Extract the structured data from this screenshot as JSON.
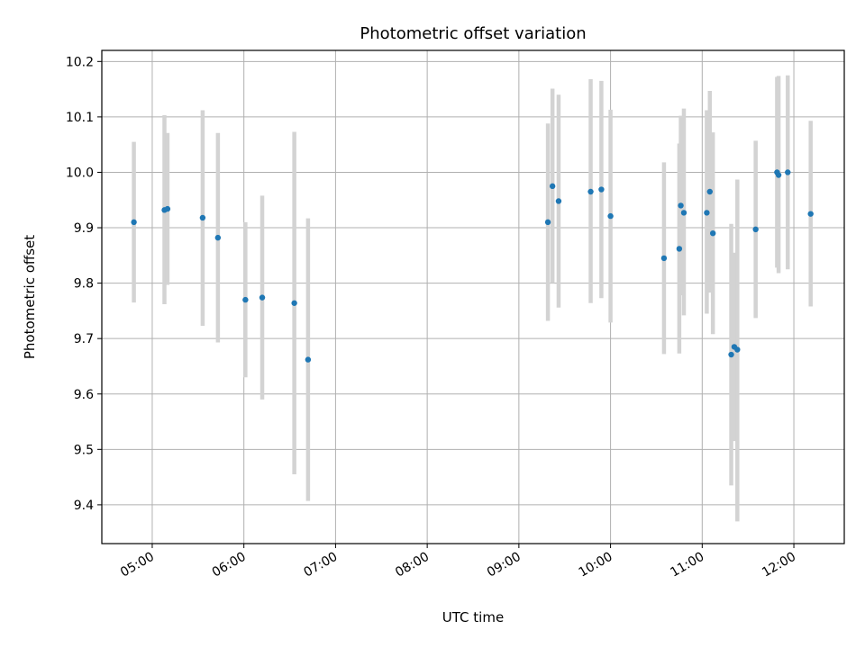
{
  "chart_data": {
    "type": "scatter",
    "title": "Photometric offset variation",
    "xlabel": "UTC time",
    "ylabel": "Photometric offset",
    "xlim": [
      "04:27",
      "12:33"
    ],
    "ylim": [
      9.33,
      10.22
    ],
    "x_ticks": [
      "05:00",
      "06:00",
      "07:00",
      "08:00",
      "09:00",
      "10:00",
      "11:00",
      "12:00"
    ],
    "y_ticks": [
      9.4,
      9.5,
      9.6,
      9.7,
      9.8,
      9.9,
      10.0,
      10.1,
      10.2
    ],
    "grid": true,
    "marker_color": "#1f77b4",
    "errorbar_color": "#d3d3d3",
    "points": [
      {
        "t": "04:48",
        "y": 9.91,
        "lo": 9.765,
        "hi": 10.055
      },
      {
        "t": "05:08",
        "y": 9.932,
        "lo": 9.762,
        "hi": 10.103
      },
      {
        "t": "05:10",
        "y": 9.934,
        "lo": 9.797,
        "hi": 10.071
      },
      {
        "t": "05:33",
        "y": 9.918,
        "lo": 9.723,
        "hi": 10.112
      },
      {
        "t": "05:43",
        "y": 9.882,
        "lo": 9.693,
        "hi": 10.071
      },
      {
        "t": "06:01",
        "y": 9.77,
        "lo": 9.63,
        "hi": 9.91
      },
      {
        "t": "06:12",
        "y": 9.774,
        "lo": 9.59,
        "hi": 9.958
      },
      {
        "t": "06:33",
        "y": 9.764,
        "lo": 9.455,
        "hi": 10.073
      },
      {
        "t": "06:42",
        "y": 9.662,
        "lo": 9.407,
        "hi": 9.917
      },
      {
        "t": "09:19",
        "y": 9.91,
        "lo": 9.732,
        "hi": 10.088
      },
      {
        "t": "09:22",
        "y": 9.975,
        "lo": 9.8,
        "hi": 10.151
      },
      {
        "t": "09:26",
        "y": 9.948,
        "lo": 9.756,
        "hi": 10.14
      },
      {
        "t": "09:47",
        "y": 9.965,
        "lo": 9.764,
        "hi": 10.168
      },
      {
        "t": "09:54",
        "y": 9.969,
        "lo": 9.773,
        "hi": 10.165
      },
      {
        "t": "10:00",
        "y": 9.921,
        "lo": 9.729,
        "hi": 10.113
      },
      {
        "t": "10:35",
        "y": 9.845,
        "lo": 9.672,
        "hi": 10.018
      },
      {
        "t": "10:45",
        "y": 9.862,
        "lo": 9.673,
        "hi": 10.052
      },
      {
        "t": "10:46",
        "y": 9.94,
        "lo": 9.778,
        "hi": 10.102
      },
      {
        "t": "10:48",
        "y": 9.927,
        "lo": 9.742,
        "hi": 10.115
      },
      {
        "t": "11:03",
        "y": 9.927,
        "lo": 9.745,
        "hi": 10.112
      },
      {
        "t": "11:05",
        "y": 9.965,
        "lo": 9.783,
        "hi": 10.147
      },
      {
        "t": "11:07",
        "y": 9.89,
        "lo": 9.708,
        "hi": 10.072
      },
      {
        "t": "11:19",
        "y": 9.671,
        "lo": 9.435,
        "hi": 9.907
      },
      {
        "t": "11:21",
        "y": 9.685,
        "lo": 9.515,
        "hi": 9.855
      },
      {
        "t": "11:23",
        "y": 9.68,
        "lo": 9.37,
        "hi": 9.987
      },
      {
        "t": "11:35",
        "y": 9.897,
        "lo": 9.737,
        "hi": 10.057
      },
      {
        "t": "11:49",
        "y": 10.0,
        "lo": 9.828,
        "hi": 10.172
      },
      {
        "t": "11:50",
        "y": 9.995,
        "lo": 9.818,
        "hi": 10.174
      },
      {
        "t": "11:56",
        "y": 10.0,
        "lo": 9.825,
        "hi": 10.175
      },
      {
        "t": "12:11",
        "y": 9.925,
        "lo": 9.758,
        "hi": 10.093
      }
    ]
  }
}
